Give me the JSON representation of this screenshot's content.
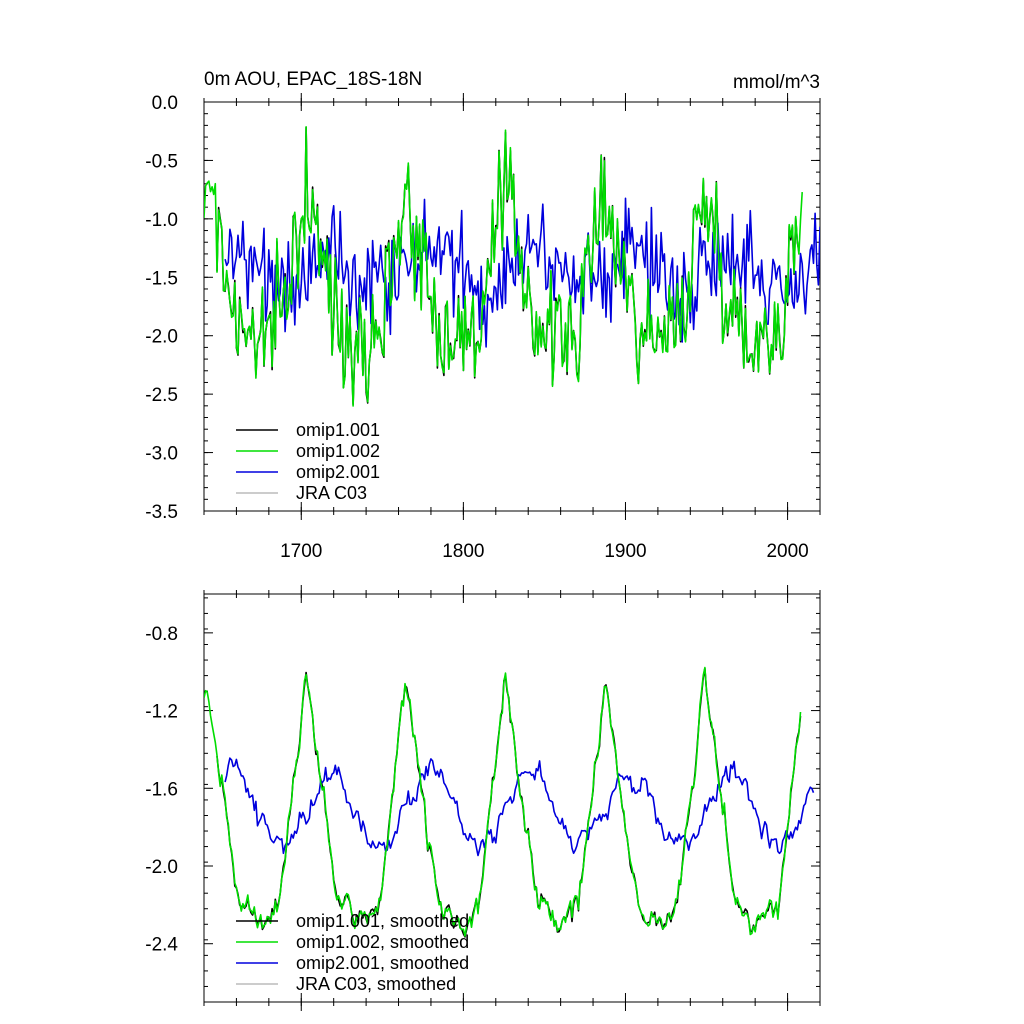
{
  "chart_data": [
    {
      "type": "line",
      "title": "0m AOU, EPAC_18S-18N",
      "units": "mmol/m^3",
      "xlabel": "",
      "ylabel": "",
      "xlim": [
        1640,
        2020
      ],
      "ylim": [
        -3.5,
        0.0
      ],
      "xticks": [
        1700,
        1800,
        1900,
        2000
      ],
      "yticks": [
        0.0,
        -0.5,
        -1.0,
        -1.5,
        -2.0,
        -2.5,
        -3.0,
        -3.5
      ],
      "ytick_labels": [
        "0.0",
        "-0.5",
        "-1.0",
        "-1.5",
        "-2.0",
        "-2.5",
        "-3.0",
        "-3.5"
      ],
      "xtick_labels": [
        "1700",
        "1800",
        "1900",
        "2000"
      ],
      "grid": false,
      "legend_position": "bottom-left",
      "series": [
        {
          "name": "omip1.001",
          "color": "#000000",
          "model": "omip1",
          "phase": 0,
          "start": 1648,
          "end": 2007
        },
        {
          "name": "omip1.002",
          "color": "#00dd00",
          "model": "omip1",
          "phase": 0,
          "start": 1640,
          "end": 2009
        },
        {
          "name": "omip2.001",
          "color": "#0000dd",
          "model": "omip2",
          "phase": 0,
          "start": 1653,
          "end": 2020
        },
        {
          "name": "JRA C03",
          "color": "#bbbbbb",
          "model": "none",
          "start": 0,
          "end": 0
        }
      ]
    },
    {
      "type": "line",
      "title": "",
      "xlabel": "",
      "ylabel": "",
      "xlim": [
        1640,
        2020
      ],
      "ylim": [
        -2.7,
        -0.6
      ],
      "xticks": [
        1700,
        1800,
        1900,
        2000
      ],
      "yticks": [
        -0.8,
        -1.2,
        -1.6,
        -2.0,
        -2.4
      ],
      "ytick_labels": [
        "-0.8",
        "-1.2",
        "-1.6",
        "-2.0",
        "-2.4"
      ],
      "grid": false,
      "legend_position": "bottom-left",
      "series": [
        {
          "name": "omip1.001, smoothed",
          "color": "#000000",
          "model": "omip1",
          "start": 1648,
          "end": 2008
        },
        {
          "name": "omip1.002, smoothed",
          "color": "#00dd00",
          "model": "omip1",
          "start": 1640,
          "end": 2008
        },
        {
          "name": "omip2.001, smoothed",
          "color": "#0000dd",
          "model": "omip2",
          "start": 1653,
          "end": 2016
        },
        {
          "name": "JRA C03, smoothed",
          "color": "#bbbbbb",
          "model": "none",
          "start": 0,
          "end": 0
        }
      ]
    }
  ]
}
